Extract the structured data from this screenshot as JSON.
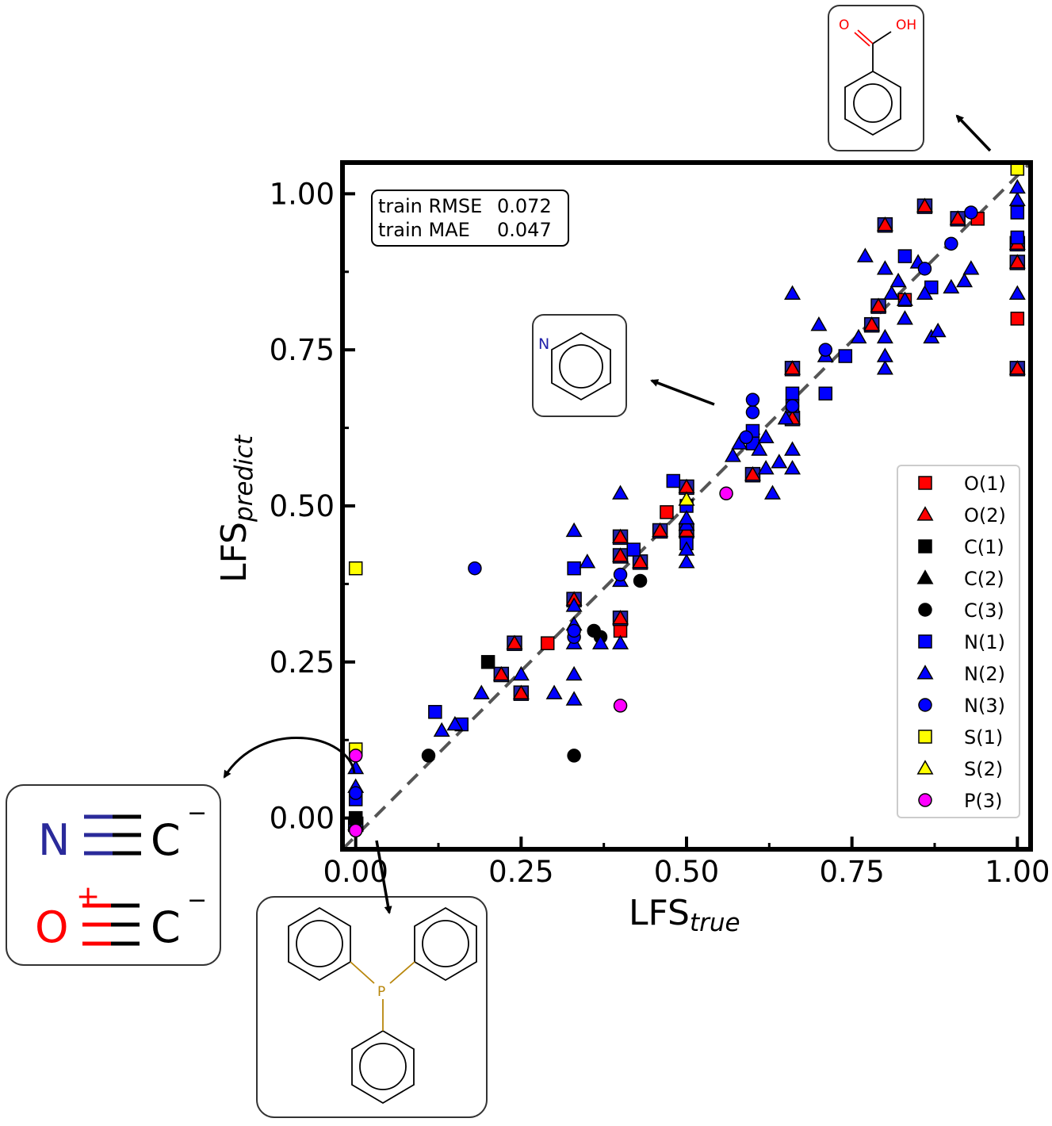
{
  "chart_data": {
    "type": "scatter",
    "title": "",
    "xlabel": {
      "main": "LFS",
      "sub": "true"
    },
    "ylabel": {
      "main": "LFS",
      "sub": "predict"
    },
    "xlim": [
      -0.02,
      1.02
    ],
    "ylim": [
      -0.05,
      1.05
    ],
    "xticks": [
      "0.00",
      "0.25",
      "0.50",
      "0.75",
      "1.00"
    ],
    "yticks": [
      "0.00",
      "0.25",
      "0.50",
      "0.75",
      "1.00"
    ],
    "xtick_values": [
      0,
      0.25,
      0.5,
      0.75,
      1.0
    ],
    "ytick_values": [
      0,
      0.25,
      0.5,
      0.75,
      1.0
    ],
    "grid": false,
    "diagonal": {
      "style": "dashed",
      "color": "#555555",
      "from": [
        -0.02,
        -0.05
      ],
      "to": [
        1.02,
        1.05
      ]
    },
    "metrics": [
      {
        "label": "train RMSE",
        "value": "0.072"
      },
      {
        "label": "train MAE",
        "value": "0.047"
      }
    ],
    "legend_position": "lower-right",
    "series": [
      {
        "name": "O(1)",
        "marker": "square",
        "color": "#ff0000",
        "points": [
          [
            0.29,
            0.28
          ],
          [
            0.4,
            0.3
          ],
          [
            0.47,
            0.49
          ],
          [
            0.83,
            0.83
          ],
          [
            0.94,
            0.96
          ],
          [
            1.0,
            0.8
          ],
          [
            0.6,
            0.55
          ]
        ]
      },
      {
        "name": "O(2)",
        "marker": "triangle",
        "color": "#ff0000",
        "edge_fill": "#2222aa",
        "points": [
          [
            0.0,
            -0.01
          ],
          [
            0.22,
            0.23
          ],
          [
            0.24,
            0.28
          ],
          [
            0.25,
            0.2
          ],
          [
            0.33,
            0.35
          ],
          [
            0.4,
            0.32
          ],
          [
            0.4,
            0.42
          ],
          [
            0.4,
            0.45
          ],
          [
            0.43,
            0.41
          ],
          [
            0.5,
            0.53
          ],
          [
            0.6,
            0.55
          ],
          [
            0.66,
            0.72
          ],
          [
            0.66,
            0.64
          ],
          [
            0.78,
            0.79
          ],
          [
            0.79,
            0.82
          ],
          [
            0.8,
            0.95
          ],
          [
            0.86,
            0.98
          ],
          [
            0.91,
            0.96
          ],
          [
            1.0,
            0.72
          ],
          [
            1.0,
            0.89
          ],
          [
            1.0,
            0.92
          ],
          [
            0.5,
            0.46
          ],
          [
            0.46,
            0.46
          ]
        ]
      },
      {
        "name": "C(1)",
        "marker": "square",
        "color": "#000000",
        "points": [
          [
            0.2,
            0.25
          ],
          [
            0.0,
            0.0
          ]
        ]
      },
      {
        "name": "C(2)",
        "marker": "triangle",
        "color": "#000000",
        "points": []
      },
      {
        "name": "C(3)",
        "marker": "circle",
        "color": "#000000",
        "points": [
          [
            0.11,
            0.1
          ],
          [
            0.33,
            0.1
          ],
          [
            0.36,
            0.3
          ],
          [
            0.37,
            0.29
          ],
          [
            0.43,
            0.38
          ]
        ]
      },
      {
        "name": "N(1)",
        "marker": "square",
        "color": "#0000ff",
        "points": [
          [
            0.12,
            0.17
          ],
          [
            0.16,
            0.15
          ],
          [
            0.33,
            0.4
          ],
          [
            0.42,
            0.43
          ],
          [
            0.48,
            0.54
          ],
          [
            0.5,
            0.5
          ],
          [
            0.5,
            0.44
          ],
          [
            0.6,
            0.62
          ],
          [
            0.66,
            0.68
          ],
          [
            0.71,
            0.68
          ],
          [
            0.74,
            0.74
          ],
          [
            0.83,
            0.9
          ],
          [
            0.87,
            0.85
          ],
          [
            1.0,
            0.93
          ],
          [
            1.0,
            0.97
          ],
          [
            0.0,
            0.03
          ],
          [
            0.66,
            0.66
          ],
          [
            0.6,
            0.6
          ]
        ]
      },
      {
        "name": "N(2)",
        "marker": "triangle",
        "color": "#0000ff",
        "points": [
          [
            0.0,
            0.08
          ],
          [
            0.0,
            0.05
          ],
          [
            0.13,
            0.14
          ],
          [
            0.15,
            0.15
          ],
          [
            0.19,
            0.2
          ],
          [
            0.25,
            0.23
          ],
          [
            0.3,
            0.2
          ],
          [
            0.33,
            0.19
          ],
          [
            0.33,
            0.23
          ],
          [
            0.33,
            0.28
          ],
          [
            0.33,
            0.31
          ],
          [
            0.33,
            0.46
          ],
          [
            0.35,
            0.41
          ],
          [
            0.37,
            0.28
          ],
          [
            0.4,
            0.52
          ],
          [
            0.4,
            0.38
          ],
          [
            0.5,
            0.41
          ],
          [
            0.5,
            0.43
          ],
          [
            0.5,
            0.47
          ],
          [
            0.57,
            0.58
          ],
          [
            0.58,
            0.6
          ],
          [
            0.61,
            0.59
          ],
          [
            0.62,
            0.56
          ],
          [
            0.62,
            0.61
          ],
          [
            0.63,
            0.52
          ],
          [
            0.64,
            0.57
          ],
          [
            0.65,
            0.64
          ],
          [
            0.66,
            0.56
          ],
          [
            0.66,
            0.59
          ],
          [
            0.66,
            0.84
          ],
          [
            0.7,
            0.79
          ],
          [
            0.71,
            0.74
          ],
          [
            0.76,
            0.77
          ],
          [
            0.77,
            0.9
          ],
          [
            0.8,
            0.72
          ],
          [
            0.8,
            0.74
          ],
          [
            0.8,
            0.77
          ],
          [
            0.8,
            0.88
          ],
          [
            0.81,
            0.84
          ],
          [
            0.83,
            0.8
          ],
          [
            0.83,
            0.83
          ],
          [
            0.85,
            0.89
          ],
          [
            0.87,
            0.77
          ],
          [
            0.88,
            0.78
          ],
          [
            0.9,
            0.85
          ],
          [
            0.92,
            0.86
          ],
          [
            0.93,
            0.88
          ],
          [
            1.0,
            0.84
          ],
          [
            1.0,
            0.99
          ],
          [
            1.0,
            1.01
          ],
          [
            0.82,
            0.86
          ],
          [
            0.86,
            0.84
          ],
          [
            0.5,
            0.48
          ],
          [
            0.33,
            0.34
          ],
          [
            0.4,
            0.28
          ]
        ]
      },
      {
        "name": "N(3)",
        "marker": "circle",
        "color": "#0000ff",
        "points": [
          [
            0.0,
            0.04
          ],
          [
            0.18,
            0.4
          ],
          [
            0.33,
            0.29
          ],
          [
            0.33,
            0.3
          ],
          [
            0.59,
            0.61
          ],
          [
            0.6,
            0.65
          ],
          [
            0.6,
            0.67
          ],
          [
            0.66,
            0.66
          ],
          [
            0.71,
            0.75
          ],
          [
            0.86,
            0.88
          ],
          [
            0.9,
            0.92
          ],
          [
            0.93,
            0.97
          ],
          [
            0.4,
            0.39
          ]
        ]
      },
      {
        "name": "S(1)",
        "marker": "square",
        "color": "#ffff00",
        "points": [
          [
            0.0,
            0.4
          ],
          [
            0.0,
            0.11
          ],
          [
            1.0,
            1.04
          ]
        ]
      },
      {
        "name": "S(2)",
        "marker": "triangle",
        "color": "#ffff00",
        "points": [
          [
            0.5,
            0.51
          ]
        ]
      },
      {
        "name": "P(3)",
        "marker": "circle",
        "color": "#ff00ff",
        "points": [
          [
            0.0,
            0.1
          ],
          [
            0.0,
            -0.02
          ],
          [
            0.4,
            0.18
          ],
          [
            0.56,
            0.52
          ]
        ]
      }
    ]
  },
  "insets": {
    "benzoic_acid": {
      "label_o": "O",
      "label_oh": "OH",
      "label_color": "#ff0000"
    },
    "pyridine": {
      "label_n": "N",
      "label_color": "#2222aa"
    },
    "triphenylphosphine": {
      "label_p": "P",
      "label_color": "#b8860b"
    },
    "cyanide_co": {
      "row1_atom": "N",
      "row1_atom_color": "#2a2a9a",
      "row1_carbon": "C",
      "row1_charge": "−",
      "row2_atom": "O",
      "row2_atom_color": "#ff0000",
      "row2_charge_o": "+",
      "row2_carbon": "C",
      "row2_charge": "−"
    }
  }
}
